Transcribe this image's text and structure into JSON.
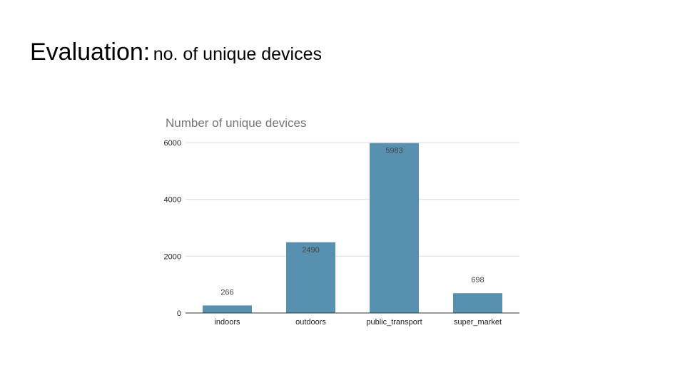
{
  "slide": {
    "title_main": "Evaluation:",
    "title_sub": "no. of unique devices"
  },
  "chart_data": {
    "type": "bar",
    "title": "Number of unique devices",
    "categories": [
      "indoors",
      "outdoors",
      "public_transport",
      "super_market"
    ],
    "values": [
      266,
      2490,
      5983,
      698
    ],
    "data_labels": [
      "266",
      "2490",
      "5983",
      "698"
    ],
    "yticks": [
      0,
      2000,
      4000,
      6000
    ],
    "ylim": [
      0,
      6000
    ],
    "xlabel": "",
    "ylabel": "",
    "grid": true,
    "bar_color": "#5891b0",
    "gridline_color": "#dddddd",
    "axis_color": "#333333"
  }
}
